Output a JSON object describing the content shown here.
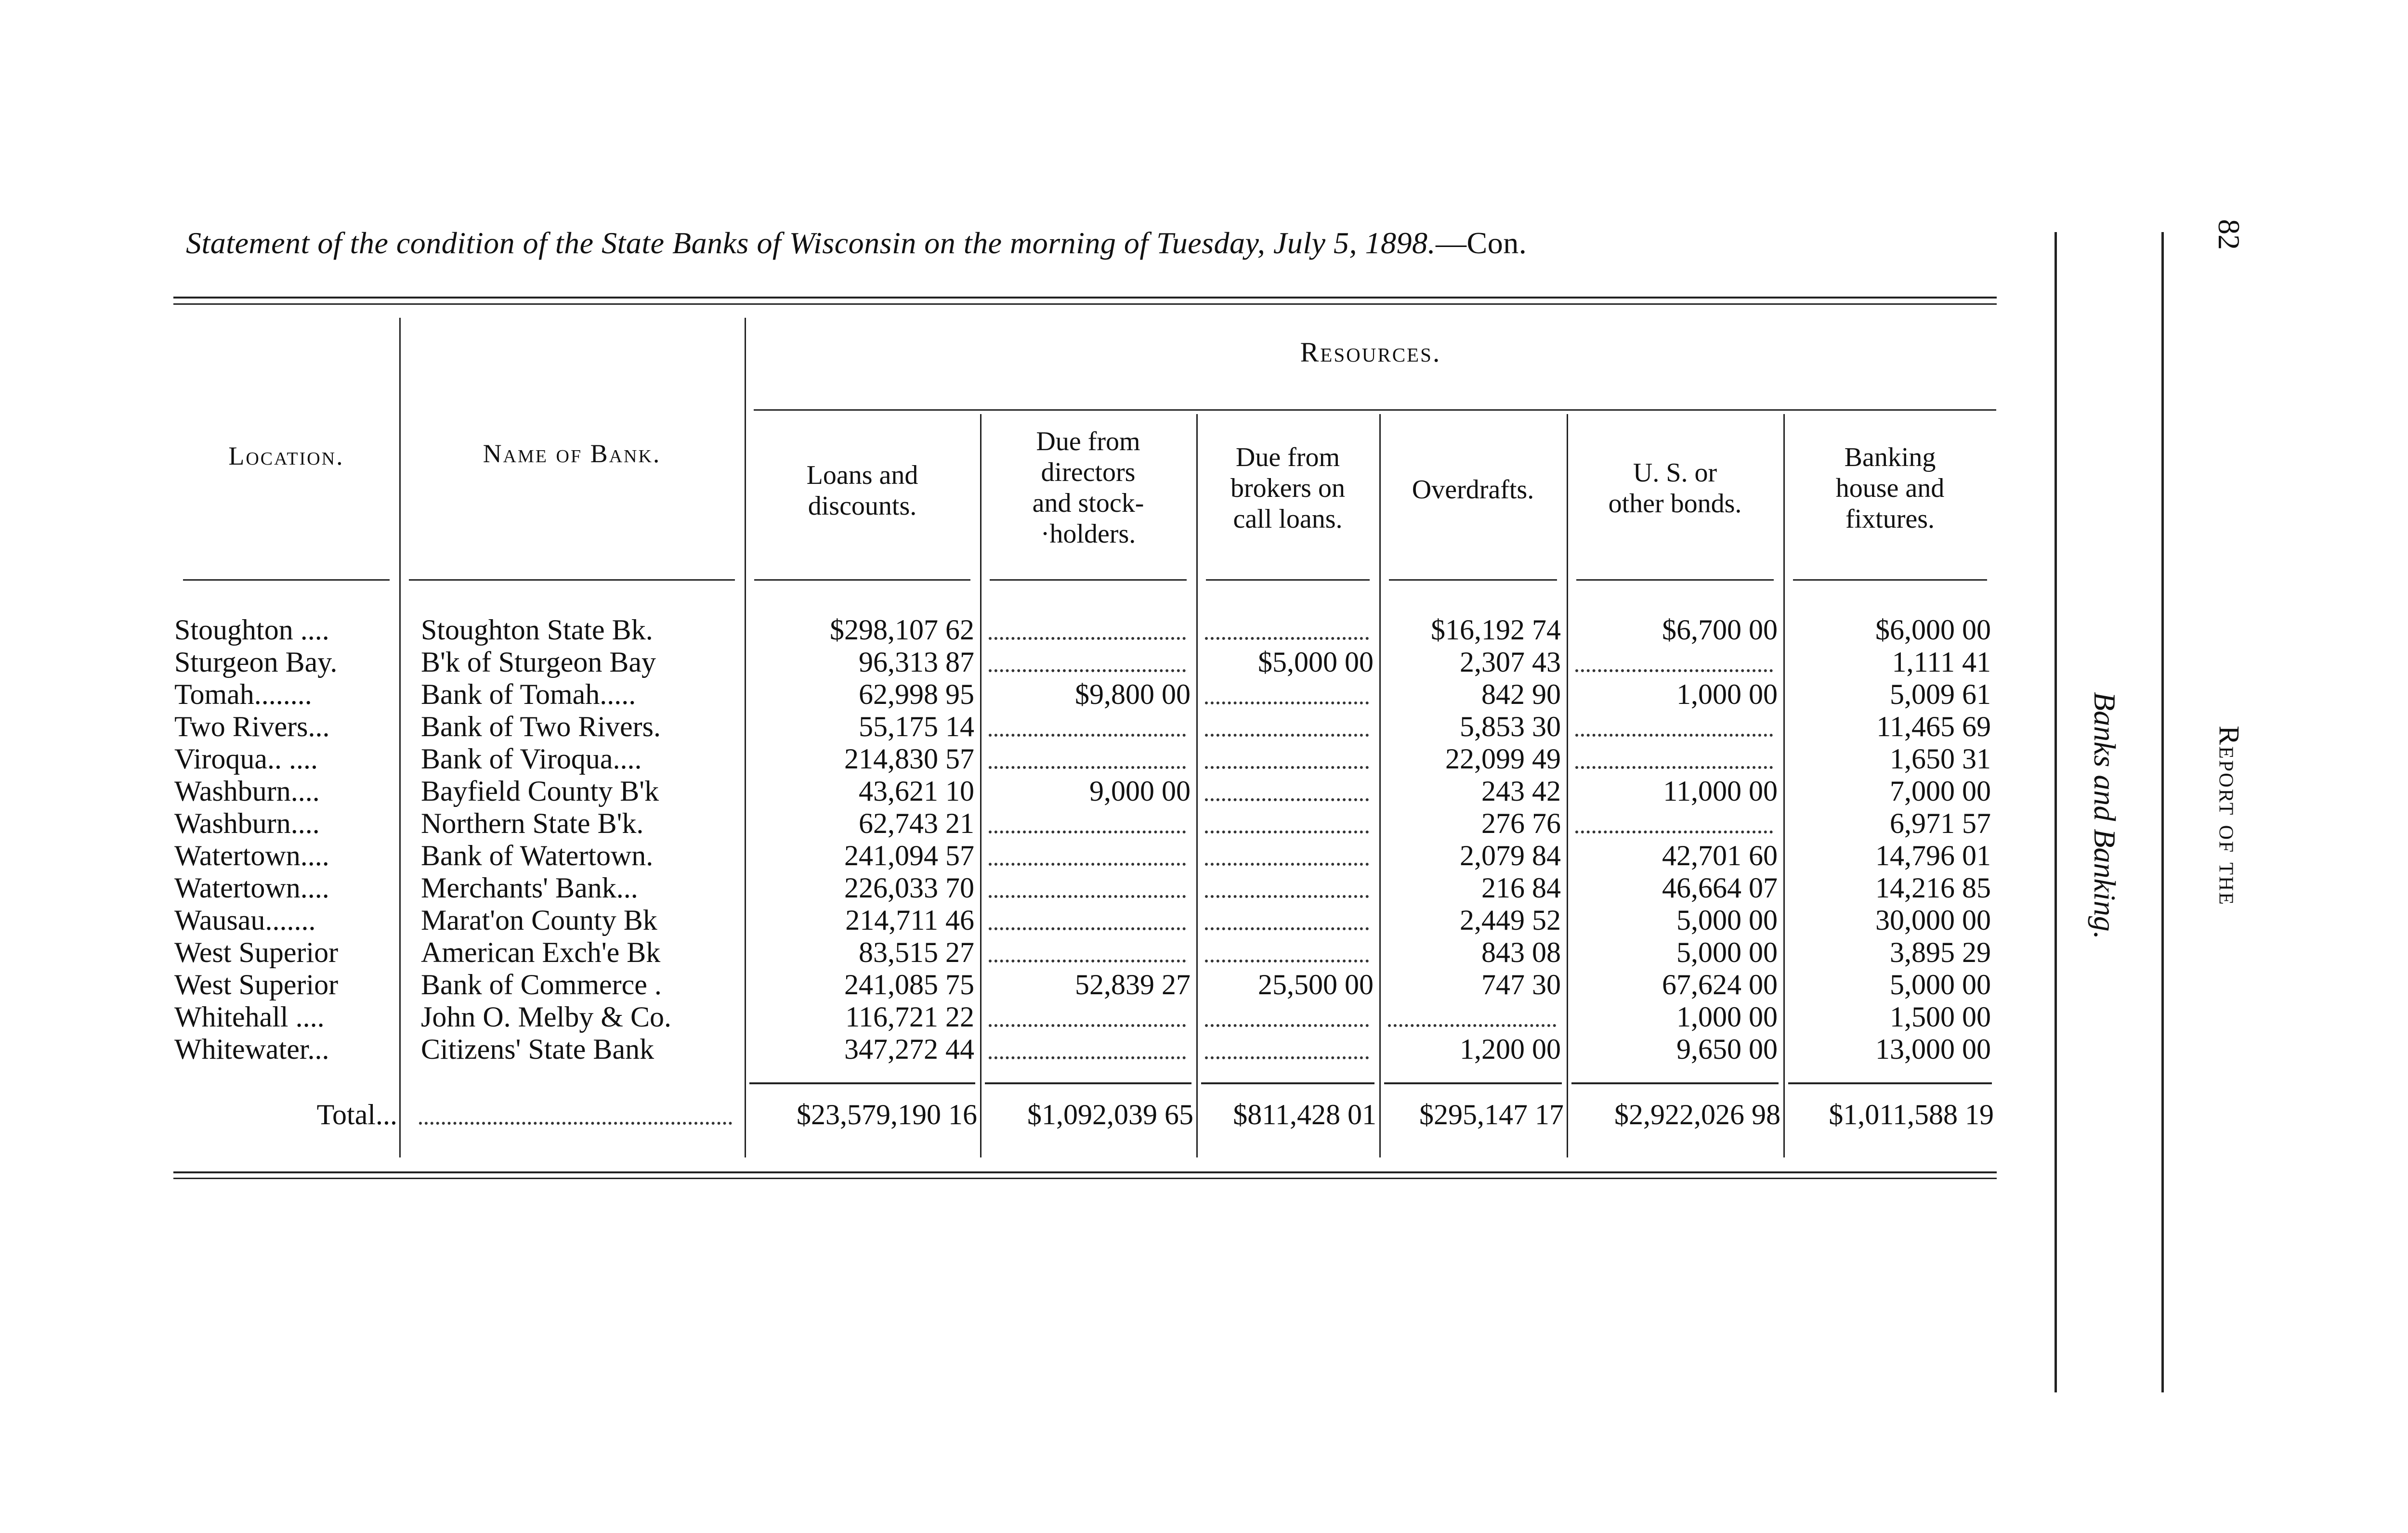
{
  "page": {
    "title": "Statement of the condition of the State Banks of Wisconsin on the morning of Tuesday, July 5, 1898.",
    "title_suffix": "—Con.",
    "page_number": "82",
    "running_head": "Report of the",
    "section_head": "Banks and Banking."
  },
  "table": {
    "group_header": "Resources.",
    "headers": {
      "location": "Location.",
      "bank": "Name of Bank.",
      "columns": [
        "Loans and\ndiscounts.",
        "Due from\ndirectors\nand stock-\n·holders.",
        "Due from\nbrokers on\ncall loans.",
        "Overdrafts.",
        "U. S. or\nother bonds.",
        "Banking\nhouse and\nfixtures."
      ]
    },
    "rows": [
      {
        "location": "Stoughton ....",
        "bank": "Stoughton State Bk.",
        "values": [
          "$298,107 62",
          "",
          "",
          "$16,192 74",
          "$6,700 00",
          "$6,000 00"
        ]
      },
      {
        "location": "Sturgeon Bay.",
        "bank": "B'k of Sturgeon Bay",
        "values": [
          "96,313 87",
          "",
          "$5,000 00",
          "2,307 43",
          "",
          "1,111 41"
        ]
      },
      {
        "location": "Tomah........",
        "bank": "Bank of Tomah.....",
        "values": [
          "62,998 95",
          "$9,800 00",
          "",
          "842 90",
          "1,000 00",
          "5,009 61"
        ]
      },
      {
        "location": "Two Rivers...",
        "bank": "Bank of Two Rivers.",
        "values": [
          "55,175 14",
          "",
          "",
          "5,853 30",
          "",
          "11,465 69"
        ]
      },
      {
        "location": "Viroqua.. ....",
        "bank": "Bank of Viroqua....",
        "values": [
          "214,830 57",
          "",
          "",
          "22,099 49",
          "",
          "1,650 31"
        ]
      },
      {
        "location": "Washburn....",
        "bank": "Bayfield County B'k",
        "values": [
          "43,621 10",
          "9,000 00",
          "",
          "243 42",
          "11,000 00",
          "7,000 00"
        ]
      },
      {
        "location": "Washburn....",
        "bank": "Northern State B'k.",
        "values": [
          "62,743 21",
          "",
          "",
          "276 76",
          "",
          "6,971 57"
        ]
      },
      {
        "location": "Watertown....",
        "bank": "Bank of Watertown.",
        "values": [
          "241,094 57",
          "",
          "",
          "2,079 84",
          "42,701 60",
          "14,796 01"
        ]
      },
      {
        "location": "Watertown....",
        "bank": "Merchants' Bank...",
        "values": [
          "226,033 70",
          "",
          "",
          "216 84",
          "46,664 07",
          "14,216 85"
        ]
      },
      {
        "location": "Wausau.......",
        "bank": "Marat'on County Bk",
        "values": [
          "214,711 46",
          "",
          "",
          "2,449 52",
          "5,000 00",
          "30,000 00"
        ]
      },
      {
        "location": "West Superior",
        "bank": "American Exch'e Bk",
        "values": [
          "83,515 27",
          "",
          "",
          "843 08",
          "5,000 00",
          "3,895 29"
        ]
      },
      {
        "location": "West Superior",
        "bank": "Bank of Commerce .",
        "values": [
          "241,085 75",
          "52,839 27",
          "25,500 00",
          "747 30",
          "67,624 00",
          "5,000 00"
        ]
      },
      {
        "location": "Whitehall ....",
        "bank": "John O. Melby & Co.",
        "values": [
          "116,721 22",
          "",
          "",
          "",
          "1,000 00",
          "1,500 00"
        ]
      },
      {
        "location": "Whitewater...",
        "bank": "Citizens' State Bank",
        "values": [
          "347,272 44",
          "",
          "",
          "1,200 00",
          "9,650 00",
          "13,000 00"
        ]
      }
    ],
    "total": {
      "label": "Total...",
      "values": [
        "$23,579,190 16",
        "$1,092,039 65",
        "$811,428 01",
        "$295,147 17",
        "$2,922,026 98",
        "$1,011,588 19"
      ]
    }
  }
}
